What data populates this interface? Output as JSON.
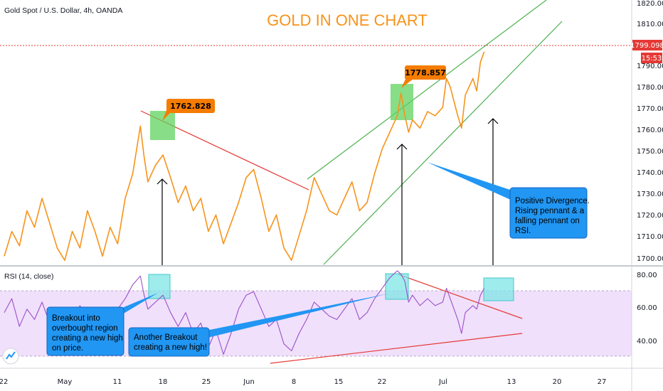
{
  "header": {
    "symbol": "Gold Spot / U.S. Dollar, 4h, OANDA",
    "title": "GOLD IN ONE CHART"
  },
  "price_axis": {
    "ticks": [
      "1820.000",
      "1810.000",
      "1799.098",
      "1790.000",
      "1780.000",
      "1770.000",
      "1760.000",
      "1750.000",
      "1740.000",
      "1730.000",
      "1720.000",
      "1710.000",
      "1700.000"
    ],
    "current_price": "1799.098",
    "countdown": "15:53"
  },
  "rsi_panel": {
    "label": "RSI (14, close)",
    "ticks": [
      "80.00",
      "60.00",
      "40.00"
    ]
  },
  "time_axis": {
    "labels": [
      "22",
      "May",
      "11",
      "18",
      "25",
      "Jun",
      "8",
      "15",
      "22",
      "Jul",
      "13",
      "20",
      "27"
    ]
  },
  "annotations": {
    "peak1_price": "1762.828",
    "peak2_price": "1778.857",
    "callout_divergence": [
      "Positive Divergence.",
      "Rising pennant & a",
      "falling pennant on",
      "RSI."
    ],
    "callout_breakout": [
      "Breakout into",
      "overbought region",
      "creating a new high",
      "on price."
    ],
    "callout_another": [
      "Another Breakout",
      "creating a new high!"
    ]
  },
  "colors": {
    "price_line": "#f7931a",
    "rsi_line": "#9c4fc9",
    "rsi_band": "#f0e0fb",
    "red_trend": "#e53935",
    "green_channel": "#4caf50",
    "callout_blue": "#2196f3",
    "price_badge": "#f57c00",
    "current_price_badge": "#e53935"
  },
  "chart_data": [
    {
      "type": "line",
      "name": "price",
      "ylim": [
        1696,
        1824
      ],
      "xlim": [
        0,
        128
      ],
      "points": [
        [
          0,
          1700
        ],
        [
          2,
          1712
        ],
        [
          4,
          1705
        ],
        [
          6,
          1722
        ],
        [
          8,
          1714
        ],
        [
          10,
          1728
        ],
        [
          12,
          1716
        ],
        [
          14,
          1704
        ],
        [
          16,
          1698
        ],
        [
          18,
          1712
        ],
        [
          20,
          1704
        ],
        [
          22,
          1722
        ],
        [
          24,
          1712
        ],
        [
          26,
          1700
        ],
        [
          28,
          1714
        ],
        [
          30,
          1706
        ],
        [
          32,
          1728
        ],
        [
          34,
          1740
        ],
        [
          36,
          1763
        ],
        [
          37,
          1748
        ],
        [
          38,
          1736
        ],
        [
          40,
          1744
        ],
        [
          42,
          1749
        ],
        [
          44,
          1738
        ],
        [
          46,
          1726
        ],
        [
          48,
          1734
        ],
        [
          50,
          1722
        ],
        [
          52,
          1728
        ],
        [
          54,
          1712
        ],
        [
          56,
          1720
        ],
        [
          58,
          1706
        ],
        [
          60,
          1716
        ],
        [
          62,
          1726
        ],
        [
          64,
          1738
        ],
        [
          66,
          1742
        ],
        [
          68,
          1728
        ],
        [
          70,
          1712
        ],
        [
          72,
          1720
        ],
        [
          74,
          1704
        ],
        [
          76,
          1698
        ],
        [
          78,
          1710
        ],
        [
          80,
          1722
        ],
        [
          82,
          1738
        ],
        [
          84,
          1730
        ],
        [
          86,
          1722
        ],
        [
          88,
          1720
        ],
        [
          90,
          1728
        ],
        [
          92,
          1736
        ],
        [
          94,
          1722
        ],
        [
          96,
          1726
        ],
        [
          98,
          1740
        ],
        [
          100,
          1752
        ],
        [
          102,
          1760
        ],
        [
          104,
          1768
        ],
        [
          105,
          1779
        ],
        [
          106,
          1768
        ],
        [
          107,
          1760
        ],
        [
          108,
          1766
        ],
        [
          110,
          1762
        ],
        [
          112,
          1770
        ],
        [
          114,
          1768
        ],
        [
          116,
          1772
        ],
        [
          117,
          1786
        ],
        [
          118,
          1782
        ],
        [
          120,
          1768
        ],
        [
          121,
          1762
        ],
        [
          122,
          1778
        ],
        [
          124,
          1786
        ],
        [
          125,
          1780
        ],
        [
          126,
          1794
        ],
        [
          127,
          1799
        ]
      ]
    },
    {
      "type": "line",
      "name": "RSI (14, close)",
      "ylim": [
        24,
        82
      ],
      "xlim": [
        0,
        128
      ],
      "points": [
        [
          0,
          56
        ],
        [
          2,
          64
        ],
        [
          4,
          48
        ],
        [
          6,
          58
        ],
        [
          8,
          52
        ],
        [
          10,
          62
        ],
        [
          12,
          50
        ],
        [
          14,
          42
        ],
        [
          16,
          54
        ],
        [
          18,
          46
        ],
        [
          20,
          60
        ],
        [
          22,
          52
        ],
        [
          24,
          44
        ],
        [
          26,
          56
        ],
        [
          28,
          48
        ],
        [
          30,
          58
        ],
        [
          32,
          64
        ],
        [
          34,
          72
        ],
        [
          36,
          77
        ],
        [
          37,
          66
        ],
        [
          38,
          58
        ],
        [
          40,
          62
        ],
        [
          42,
          66
        ],
        [
          44,
          56
        ],
        [
          46,
          48
        ],
        [
          48,
          56
        ],
        [
          50,
          44
        ],
        [
          52,
          50
        ],
        [
          54,
          36
        ],
        [
          56,
          46
        ],
        [
          58,
          32
        ],
        [
          60,
          44
        ],
        [
          62,
          58
        ],
        [
          64,
          66
        ],
        [
          66,
          68
        ],
        [
          68,
          58
        ],
        [
          70,
          48
        ],
        [
          72,
          52
        ],
        [
          74,
          38
        ],
        [
          76,
          34
        ],
        [
          78,
          44
        ],
        [
          80,
          52
        ],
        [
          82,
          62
        ],
        [
          84,
          58
        ],
        [
          86,
          54
        ],
        [
          88,
          52
        ],
        [
          90,
          58
        ],
        [
          92,
          64
        ],
        [
          94,
          52
        ],
        [
          96,
          56
        ],
        [
          98,
          64
        ],
        [
          100,
          70
        ],
        [
          102,
          76
        ],
        [
          104,
          80
        ],
        [
          105,
          78
        ],
        [
          106,
          74
        ],
        [
          107,
          62
        ],
        [
          108,
          66
        ],
        [
          110,
          60
        ],
        [
          112,
          64
        ],
        [
          114,
          60
        ],
        [
          116,
          62
        ],
        [
          117,
          70
        ],
        [
          118,
          64
        ],
        [
          120,
          52
        ],
        [
          121,
          44
        ],
        [
          122,
          56
        ],
        [
          124,
          60
        ],
        [
          125,
          58
        ],
        [
          126,
          66
        ],
        [
          127,
          70
        ]
      ]
    }
  ]
}
